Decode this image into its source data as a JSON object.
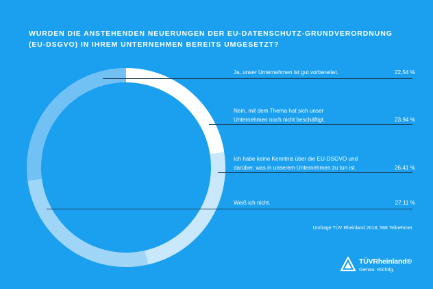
{
  "title_lines": [
    "WURDEN DIE ANSTEHENDEN NEUERUNGEN DER EU-DATENSCHUTZ-GRUNDVERORDNUNG",
    "(EU-DSGVO) IN IHREM UNTERNEHMEN BEREITS UMGESETZT?"
  ],
  "source": "Umfrage TÜV Rheinland 2018, 568 Teilnehmer",
  "logo": {
    "brand": "TÜVRheinland®",
    "tagline": "Genau. Richtig."
  },
  "colors": {
    "background": "#1aa0ee",
    "leader_line": "#1c3d5a",
    "slices": [
      "#ffffff",
      "#c9e8fb",
      "#9fd6f8",
      "#72c1f4"
    ]
  },
  "chart_data": {
    "type": "pie",
    "title": "WURDEN DIE ANSTEHENDEN NEUERUNGEN DER EU-DATENSCHUTZ-GRUNDVERORDNUNG (EU-DSGVO) IN IHREM UNTERNEHMEN BEREITS UMGESETZT?",
    "donut": true,
    "start": "top",
    "direction": "clockwise",
    "slices": [
      {
        "label_lines": [
          "Ja, unser Unternehmen ist gut vorbereitet."
        ],
        "value": 22.54,
        "value_label": "22,54 %"
      },
      {
        "label_lines": [
          "Nein, mit dem Thema hat sich unser",
          "Unternehmen noch nicht beschäftigt."
        ],
        "value": 23.94,
        "value_label": "23,94 %"
      },
      {
        "label_lines": [
          "Ich habe keine Kenntnis über die EU-DSGVO und",
          "darüber, was in unserem Unternehmen zu tun ist."
        ],
        "value": 26.41,
        "value_label": "26,41 %"
      },
      {
        "label_lines": [
          "Weiß ich nicht."
        ],
        "value": 27.11,
        "value_label": "27,11 %"
      }
    ]
  }
}
